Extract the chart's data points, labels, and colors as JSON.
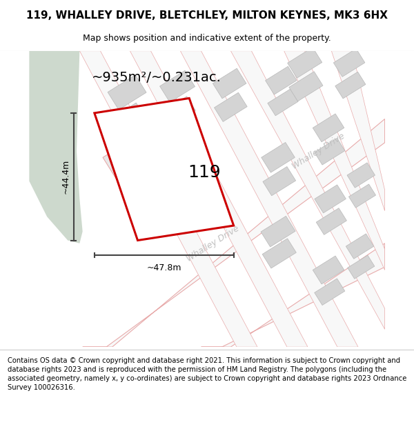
{
  "title": "119, WHALLEY DRIVE, BLETCHLEY, MILTON KEYNES, MK3 6HX",
  "subtitle": "Map shows position and indicative extent of the property.",
  "footer": "Contains OS data © Crown copyright and database right 2021. This information is subject to Crown copyright and database rights 2023 and is reproduced with the permission of HM Land Registry. The polygons (including the associated geometry, namely x, y co-ordinates) are subject to Crown copyright and database rights 2023 Ordnance Survey 100026316.",
  "area_label": "~935m²/~0.231ac.",
  "width_label": "~47.8m",
  "height_label": "~44.4m",
  "property_number": "119",
  "bg_map_color": "#eef0eb",
  "green_strip_color": "#cdd9cd",
  "road_fill": "#f8f8f8",
  "road_edge": "#e8aaaa",
  "building_fill": "#d4d4d4",
  "building_edge": "#b8b8b8",
  "property_fill": "#ffffff",
  "property_edge": "#cc0000",
  "dim_color": "#444444",
  "title_fs": 11,
  "subtitle_fs": 9,
  "footer_fs": 7.2,
  "area_fs": 14,
  "number_fs": 18,
  "dim_fs": 9,
  "road_label_color": "#c0c0c0",
  "road_label_fs": 9
}
